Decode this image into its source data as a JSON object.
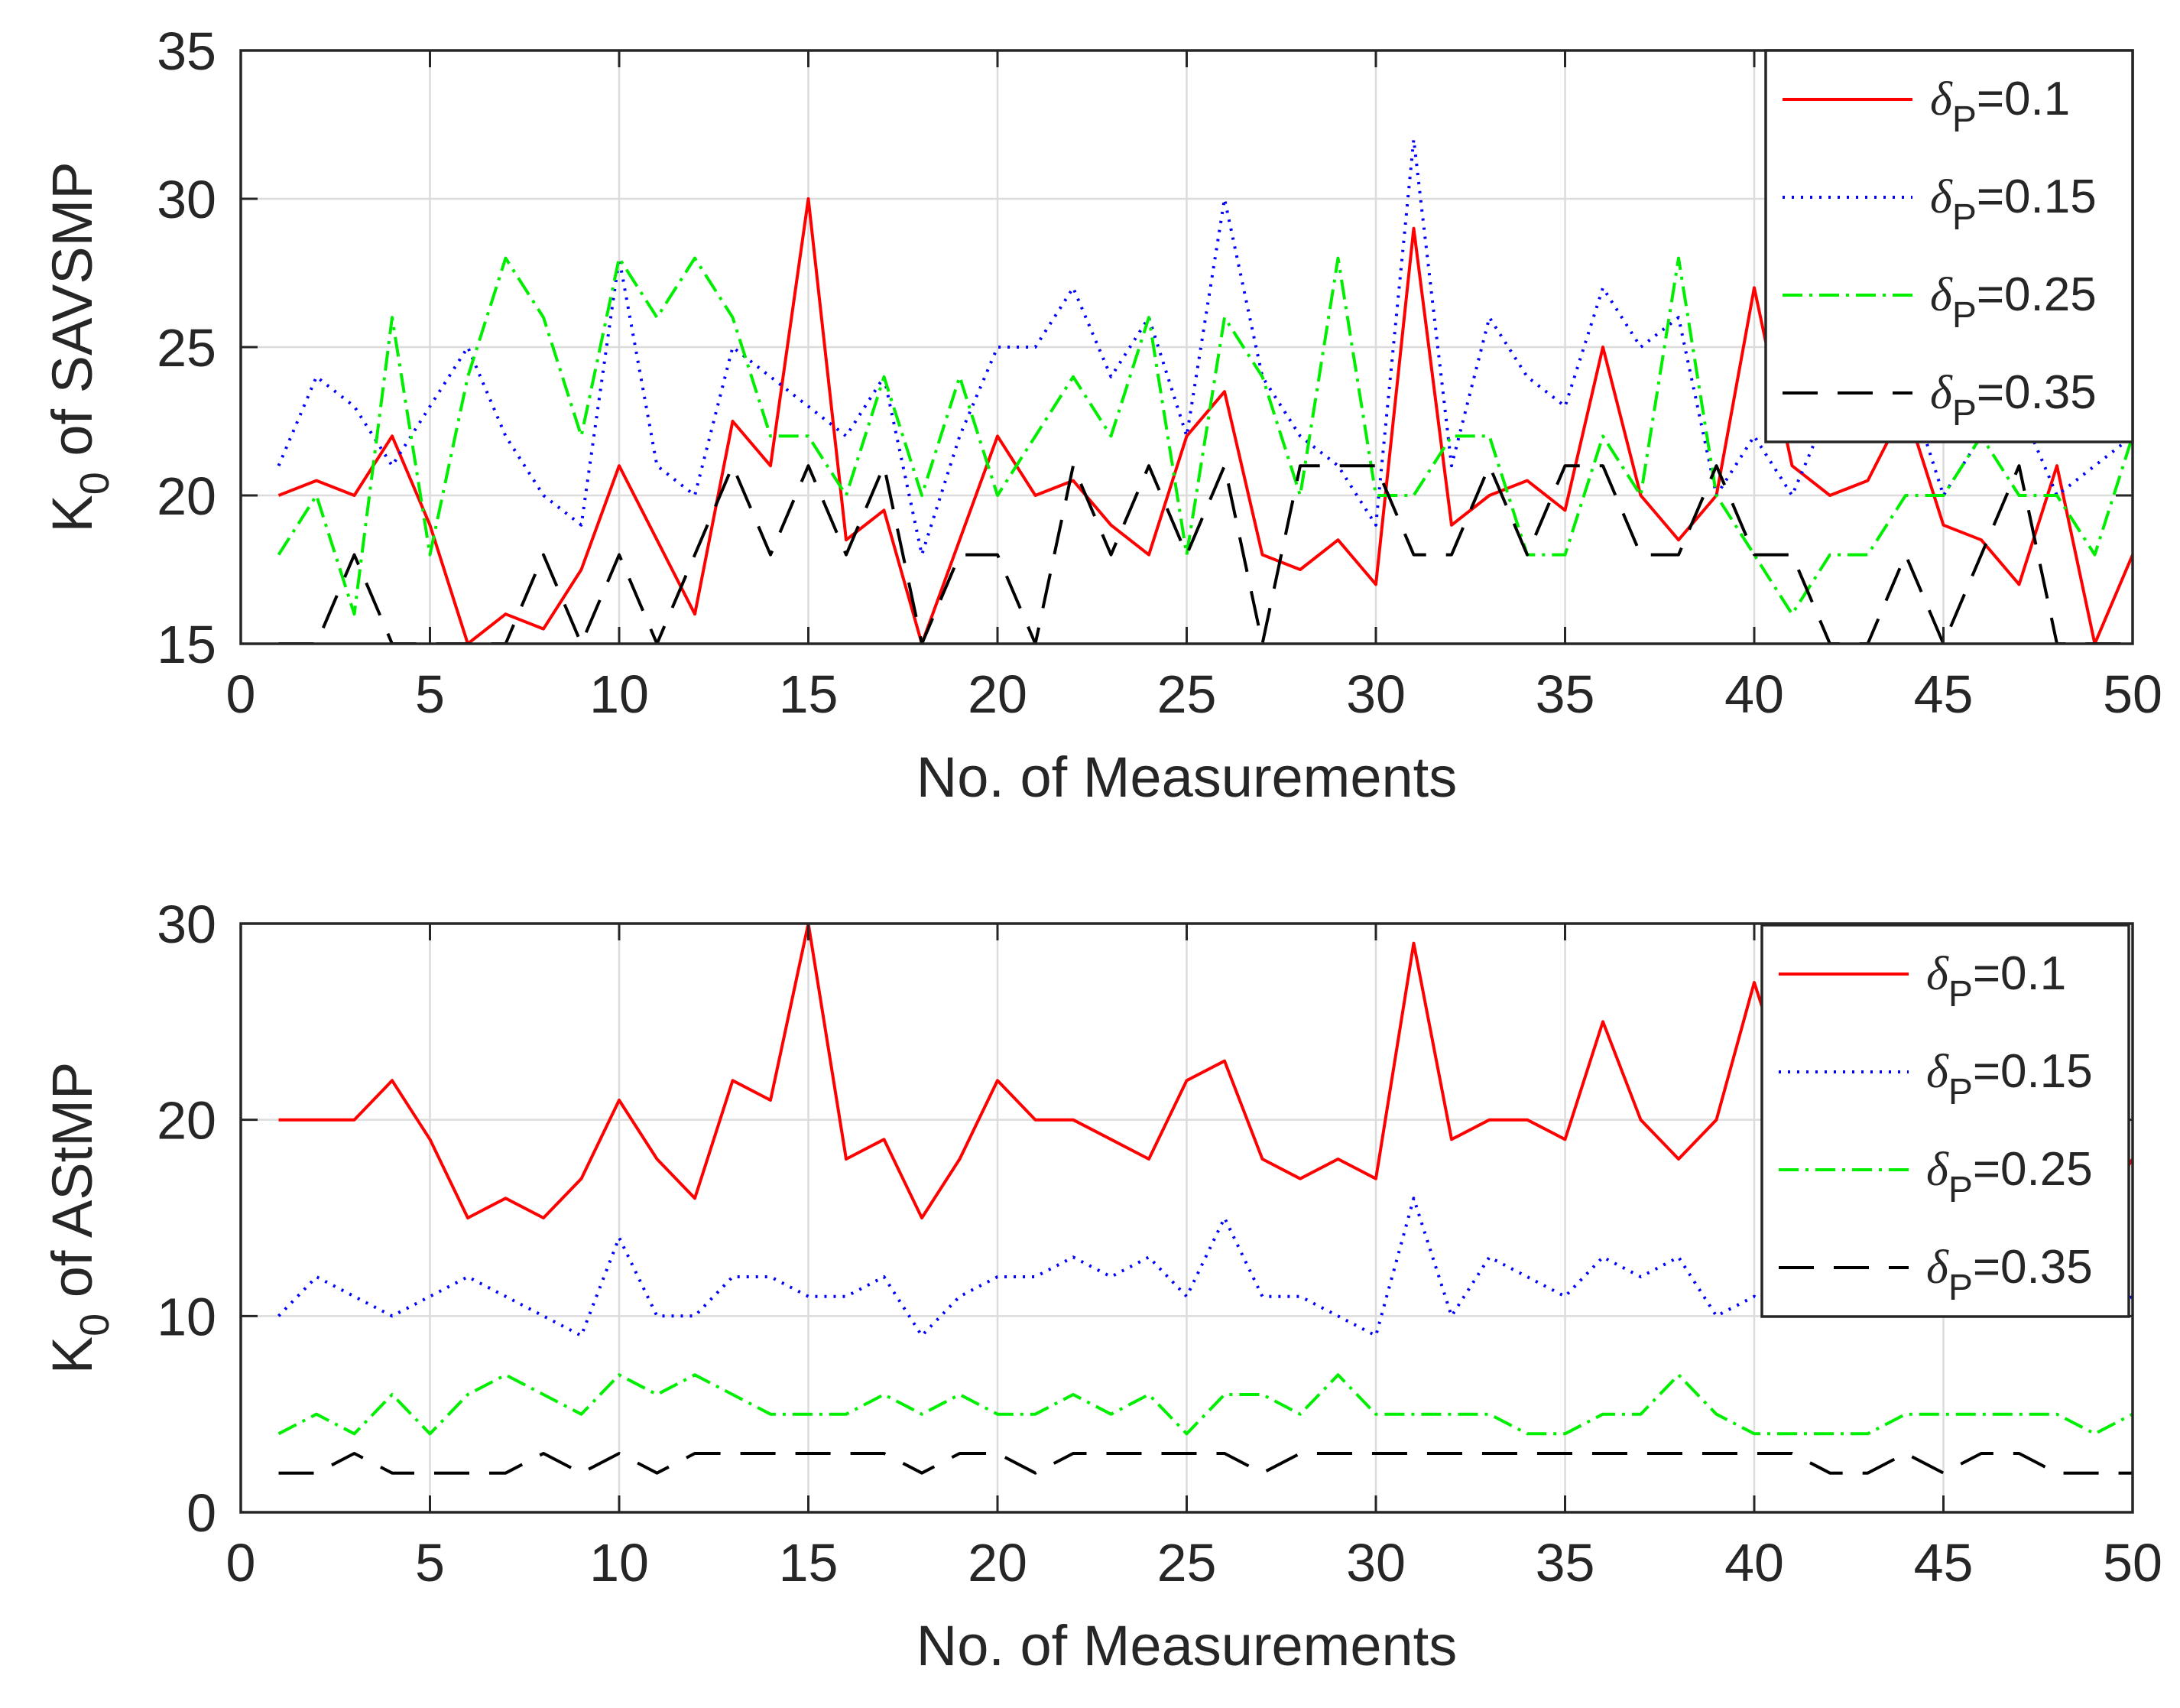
{
  "chart_data": [
    {
      "type": "line",
      "xlabel": "No. of Measurements",
      "ylabel_main": "K",
      "ylabel_sub": "0",
      "ylabel_rest": " of SAVSMP",
      "xlim": [
        0,
        50
      ],
      "ylim": [
        15,
        35
      ],
      "xticks": [
        0,
        5,
        10,
        15,
        20,
        25,
        30,
        35,
        40,
        45,
        50
      ],
      "yticks": [
        15,
        20,
        25,
        30,
        35
      ],
      "grid": true,
      "legend_position": "top-right",
      "series": [
        {
          "name": "δP=0.1",
          "legend_symbol": "δ",
          "legend_sub": "P",
          "legend_value": "=0.1",
          "color": "#ff0000",
          "style": "solid",
          "x": [
            1,
            2,
            3,
            4,
            5,
            6,
            7,
            8,
            9,
            10,
            11,
            12,
            13,
            14,
            15,
            16,
            17,
            18,
            19,
            20,
            21,
            22,
            23,
            24,
            25,
            26,
            27,
            28,
            29,
            30,
            31,
            32,
            33,
            34,
            35,
            36,
            37,
            38,
            39,
            40,
            41,
            42,
            43,
            44,
            45,
            46,
            47,
            48,
            49,
            50
          ],
          "values": [
            20,
            20.5,
            20,
            22,
            19,
            15,
            16,
            15.5,
            17.5,
            21,
            18.5,
            16,
            22.5,
            21,
            30,
            18.5,
            19.5,
            15,
            18.5,
            22,
            20,
            20.5,
            19,
            18,
            22,
            23.5,
            18,
            17.5,
            18.5,
            17,
            29,
            19,
            20,
            20.5,
            19.5,
            25,
            20,
            18.5,
            20,
            27,
            21,
            20,
            20.5,
            23,
            19,
            18.5,
            17,
            21,
            15,
            18
          ]
        },
        {
          "name": "δP=0.15",
          "legend_symbol": "δ",
          "legend_sub": "P",
          "legend_value": "=0.15",
          "color": "#0000ff",
          "style": "dotted",
          "x": [
            1,
            2,
            3,
            4,
            5,
            6,
            7,
            8,
            9,
            10,
            11,
            12,
            13,
            14,
            15,
            16,
            17,
            18,
            19,
            20,
            21,
            22,
            23,
            24,
            25,
            26,
            27,
            28,
            29,
            30,
            31,
            32,
            33,
            34,
            35,
            36,
            37,
            38,
            39,
            40,
            41,
            42,
            43,
            44,
            45,
            46,
            47,
            48,
            49,
            50
          ],
          "values": [
            21,
            24,
            23,
            21,
            23,
            25,
            22,
            20,
            19,
            28,
            21,
            20,
            25,
            24,
            23,
            22,
            24,
            18,
            22,
            25,
            25,
            27,
            24,
            26,
            22,
            30,
            24,
            22,
            21,
            19,
            32,
            21,
            26,
            24,
            23,
            27,
            25,
            26,
            20,
            22,
            20,
            23,
            24,
            24,
            20,
            22,
            23,
            20,
            21,
            22
          ]
        },
        {
          "name": "δP=0.25",
          "legend_symbol": "δ",
          "legend_sub": "P",
          "legend_value": "=0.25",
          "color": "#00ee00",
          "style": "dashdot",
          "x": [
            1,
            2,
            3,
            4,
            5,
            6,
            7,
            8,
            9,
            10,
            11,
            12,
            13,
            14,
            15,
            16,
            17,
            18,
            19,
            20,
            21,
            22,
            23,
            24,
            25,
            26,
            27,
            28,
            29,
            30,
            31,
            32,
            33,
            34,
            35,
            36,
            37,
            38,
            39,
            40,
            41,
            42,
            43,
            44,
            45,
            46,
            47,
            48,
            49,
            50
          ],
          "values": [
            18,
            20,
            16,
            26,
            18,
            24,
            28,
            26,
            22,
            28,
            26,
            28,
            26,
            22,
            22,
            20,
            24,
            20,
            24,
            20,
            22,
            24,
            22,
            26,
            18,
            26,
            24,
            20,
            28,
            20,
            20,
            22,
            22,
            18,
            18,
            22,
            20,
            28,
            20,
            18,
            16,
            18,
            18,
            20,
            20,
            22,
            20,
            20,
            18,
            22
          ]
        },
        {
          "name": "δP=0.35",
          "legend_symbol": "δ",
          "legend_sub": "P",
          "legend_value": "=0.35",
          "color": "#000000",
          "style": "dashed",
          "x": [
            1,
            2,
            3,
            4,
            5,
            6,
            7,
            8,
            9,
            10,
            11,
            12,
            13,
            14,
            15,
            16,
            17,
            18,
            19,
            20,
            21,
            22,
            23,
            24,
            25,
            26,
            27,
            28,
            29,
            30,
            31,
            32,
            33,
            34,
            35,
            36,
            37,
            38,
            39,
            40,
            41,
            42,
            43,
            44,
            45,
            46,
            47,
            48,
            49,
            50
          ],
          "values": [
            15,
            15,
            18,
            15,
            15,
            15,
            15,
            18,
            15,
            18,
            15,
            18,
            21,
            18,
            21,
            18,
            21,
            15,
            18,
            18,
            15,
            21,
            18,
            21,
            18,
            21,
            15,
            21,
            21,
            21,
            18,
            18,
            21,
            18,
            21,
            21,
            18,
            18,
            21,
            18,
            18,
            15,
            15,
            18,
            15,
            18,
            21,
            15,
            15,
            15
          ]
        }
      ]
    },
    {
      "type": "line",
      "xlabel": "No. of Measurements",
      "ylabel_main": "K",
      "ylabel_sub": "0",
      "ylabel_rest": " of AStMP",
      "xlim": [
        0,
        50
      ],
      "ylim": [
        0,
        30
      ],
      "xticks": [
        0,
        5,
        10,
        15,
        20,
        25,
        30,
        35,
        40,
        45,
        50
      ],
      "yticks": [
        0,
        10,
        20,
        30
      ],
      "grid": true,
      "legend_position": "top-right",
      "series": [
        {
          "name": "δP=0.1",
          "legend_symbol": "δ",
          "legend_sub": "P",
          "legend_value": "=0.1",
          "color": "#ff0000",
          "style": "solid",
          "x": [
            1,
            2,
            3,
            4,
            5,
            6,
            7,
            8,
            9,
            10,
            11,
            12,
            13,
            14,
            15,
            16,
            17,
            18,
            19,
            20,
            21,
            22,
            23,
            24,
            25,
            26,
            27,
            28,
            29,
            30,
            31,
            32,
            33,
            34,
            35,
            36,
            37,
            38,
            39,
            40,
            41,
            42,
            43,
            44,
            45,
            46,
            47,
            48,
            49,
            50
          ],
          "values": [
            20,
            20,
            20,
            22,
            19,
            15,
            16,
            15,
            17,
            21,
            18,
            16,
            22,
            21,
            30,
            18,
            19,
            15,
            18,
            22,
            20,
            20,
            19,
            18,
            22,
            23,
            18,
            17,
            18,
            17,
            29,
            19,
            20,
            20,
            19,
            25,
            20,
            18,
            20,
            27,
            21,
            20,
            20,
            23,
            19,
            18,
            17,
            21,
            15,
            18
          ]
        },
        {
          "name": "δP=0.15",
          "legend_symbol": "δ",
          "legend_sub": "P",
          "legend_value": "=0.15",
          "color": "#0000ff",
          "style": "dotted",
          "x": [
            1,
            2,
            3,
            4,
            5,
            6,
            7,
            8,
            9,
            10,
            11,
            12,
            13,
            14,
            15,
            16,
            17,
            18,
            19,
            20,
            21,
            22,
            23,
            24,
            25,
            26,
            27,
            28,
            29,
            30,
            31,
            32,
            33,
            34,
            35,
            36,
            37,
            38,
            39,
            40,
            41,
            42,
            43,
            44,
            45,
            46,
            47,
            48,
            49,
            50
          ],
          "values": [
            10,
            12,
            11,
            10,
            11,
            12,
            11,
            10,
            9,
            14,
            10,
            10,
            12,
            12,
            11,
            11,
            12,
            9,
            11,
            12,
            12,
            13,
            12,
            13,
            11,
            15,
            11,
            11,
            10,
            9,
            16,
            10,
            13,
            12,
            11,
            13,
            12,
            13,
            10,
            11,
            10,
            11,
            12,
            12,
            10,
            11,
            11,
            10,
            10,
            11
          ]
        },
        {
          "name": "δP=0.25",
          "legend_symbol": "δ",
          "legend_sub": "P",
          "legend_value": "=0.25",
          "color": "#00ee00",
          "style": "dashdot",
          "x": [
            1,
            2,
            3,
            4,
            5,
            6,
            7,
            8,
            9,
            10,
            11,
            12,
            13,
            14,
            15,
            16,
            17,
            18,
            19,
            20,
            21,
            22,
            23,
            24,
            25,
            26,
            27,
            28,
            29,
            30,
            31,
            32,
            33,
            34,
            35,
            36,
            37,
            38,
            39,
            40,
            41,
            42,
            43,
            44,
            45,
            46,
            47,
            48,
            49,
            50
          ],
          "values": [
            4,
            5,
            4,
            6,
            4,
            6,
            7,
            6,
            5,
            7,
            6,
            7,
            6,
            5,
            5,
            5,
            6,
            5,
            6,
            5,
            5,
            6,
            5,
            6,
            4,
            6,
            6,
            5,
            7,
            5,
            5,
            5,
            5,
            4,
            4,
            5,
            5,
            7,
            5,
            4,
            4,
            4,
            4,
            5,
            5,
            5,
            5,
            5,
            4,
            5
          ]
        },
        {
          "name": "δP=0.35",
          "legend_symbol": "δ",
          "legend_sub": "P",
          "legend_value": "=0.35",
          "color": "#000000",
          "style": "dashed",
          "x": [
            1,
            2,
            3,
            4,
            5,
            6,
            7,
            8,
            9,
            10,
            11,
            12,
            13,
            14,
            15,
            16,
            17,
            18,
            19,
            20,
            21,
            22,
            23,
            24,
            25,
            26,
            27,
            28,
            29,
            30,
            31,
            32,
            33,
            34,
            35,
            36,
            37,
            38,
            39,
            40,
            41,
            42,
            43,
            44,
            45,
            46,
            47,
            48,
            49,
            50
          ],
          "values": [
            2,
            2,
            3,
            2,
            2,
            2,
            2,
            3,
            2,
            3,
            2,
            3,
            3,
            3,
            3,
            3,
            3,
            2,
            3,
            3,
            2,
            3,
            3,
            3,
            3,
            3,
            2,
            3,
            3,
            3,
            3,
            3,
            3,
            3,
            3,
            3,
            3,
            3,
            3,
            3,
            3,
            2,
            2,
            3,
            2,
            3,
            3,
            2,
            2,
            2
          ]
        }
      ]
    }
  ]
}
